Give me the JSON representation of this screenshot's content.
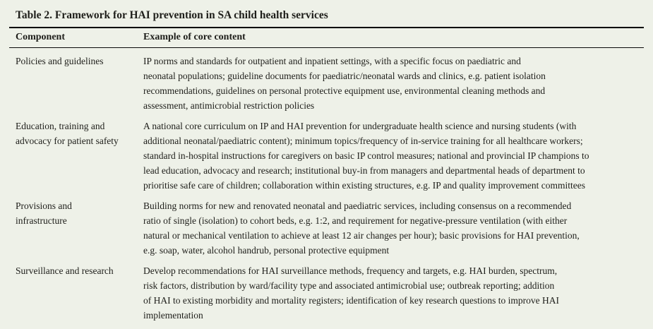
{
  "page": {
    "background_color": "#eef1e8",
    "text_color": "#1e1e1a",
    "rule_color": "#000000"
  },
  "table": {
    "title": "Table 2. Framework for HAI prevention in SA child health services",
    "headers": {
      "component": "Component",
      "content": "Example of core content"
    },
    "rows": [
      {
        "component": "Policies and guidelines",
        "content": "IP norms and standards for outpatient and inpatient settings, with a specific focus on paediatric and\nneonatal populations; guideline documents for paediatric/neonatal wards and clinics, e.g. patient isolation\nrecommendations, guidelines on personal protective equipment use, environmental cleaning methods and\nassessment, antimicrobial restriction policies"
      },
      {
        "component": "Education, training and\nadvocacy for patient safety",
        "content": "A national core curriculum on IP and HAI prevention for undergraduate health science and nursing students (with\nadditional neonatal/paediatric content); minimum topics/frequency of in-service training for all healthcare workers;\nstandard in-hospital instructions for caregivers on basic IP control measures; national and provincial IP champions to\nlead education, advocacy and research; institutional buy-in from managers and departmental heads of department to\nprioritise safe care of children; collaboration within existing structures, e.g. IP and quality improvement committees"
      },
      {
        "component": "Provisions and\ninfrastructure",
        "content": "Building norms for new and renovated neonatal and paediatric services, including consensus on a recommended\nratio of single (isolation) to cohort beds, e.g. 1:2, and requirement for negative-pressure ventilation (with either\nnatural or mechanical ventilation to achieve at least 12 air changes per hour); basic provisions for HAI prevention,\ne.g. soap, water, alcohol handrub, personal protective equipment"
      },
      {
        "component": "Surveillance and research",
        "content": "Develop recommendations for HAI surveillance methods, frequency and targets, e.g. HAI burden, spectrum,\nrisk factors, distribution by ward/facility type and associated antimicrobial use; outbreak reporting; addition\nof HAI to existing morbidity and mortality registers; identification of key research questions to improve HAI\nimplementation"
      }
    ]
  }
}
